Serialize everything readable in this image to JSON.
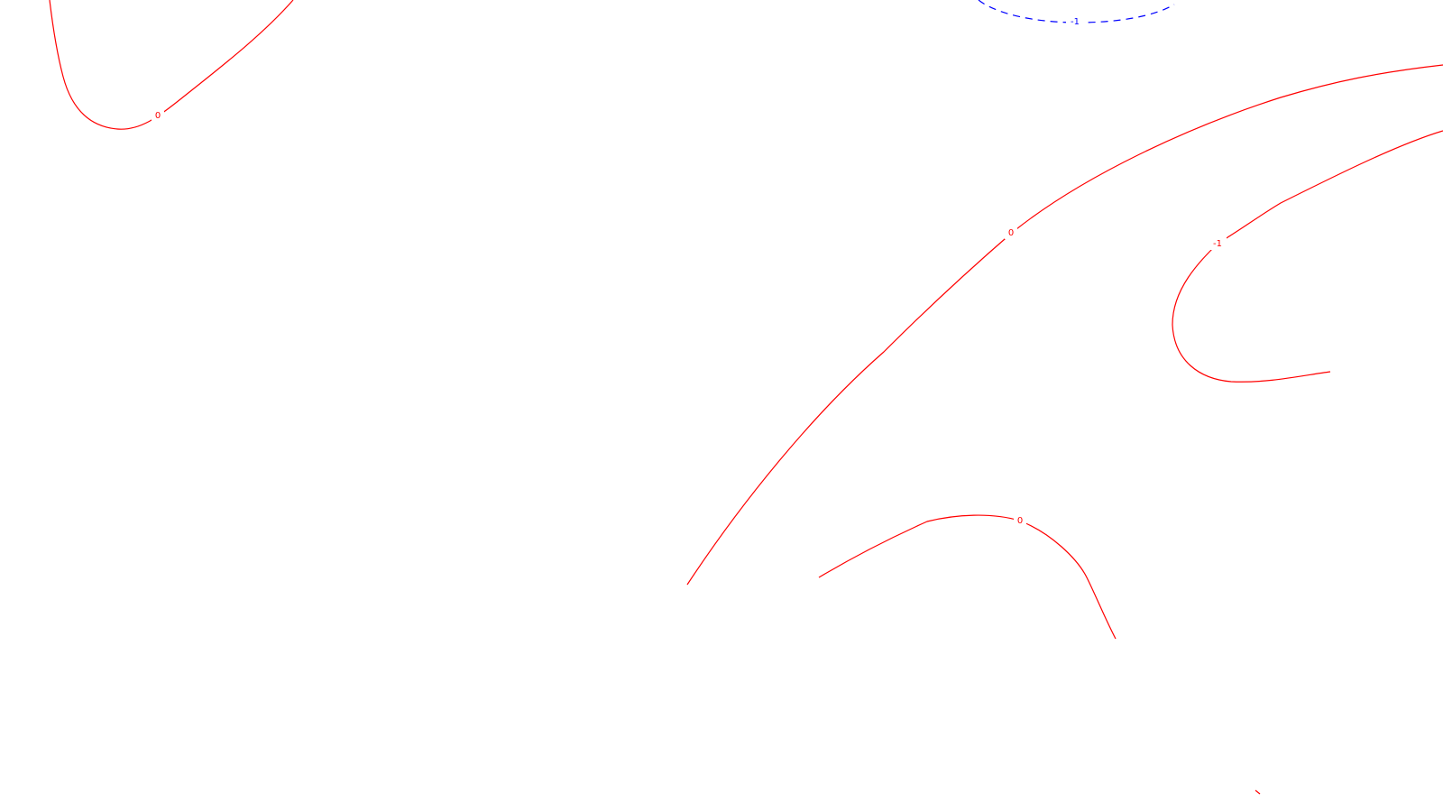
{
  "contours": [
    {
      "id": "c1",
      "value": 0,
      "color": "#ff0000",
      "dashed": false,
      "label": "0"
    },
    {
      "id": "c2",
      "value": -1,
      "color": "#0000ff",
      "dashed": true,
      "label": "-1"
    },
    {
      "id": "c3",
      "value": 0,
      "color": "#ff0000",
      "dashed": false,
      "label": "0"
    },
    {
      "id": "c4",
      "value": -1,
      "color": "#ff0000",
      "dashed": false,
      "label": "-1"
    },
    {
      "id": "c5",
      "value": 0,
      "color": "#ff0000",
      "dashed": false,
      "label": "0"
    },
    {
      "id": "c6",
      "value": 0,
      "color": "#ff0000",
      "dashed": false,
      "label": ""
    }
  ]
}
